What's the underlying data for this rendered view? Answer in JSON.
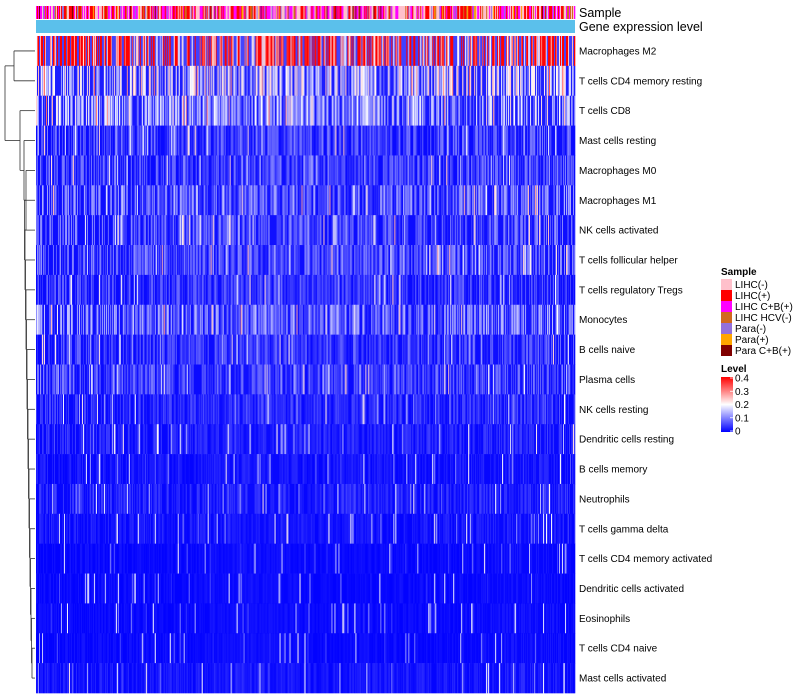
{
  "chart_data": {
    "type": "heatmap",
    "title": "",
    "annotation_tracks": [
      {
        "name": "Sample",
        "type": "categorical"
      },
      {
        "name": "Gene expression level",
        "type": "continuous",
        "color": "#5bc0eb"
      }
    ],
    "rows": [
      {
        "label": "Macrophages M2",
        "level": 0.34
      },
      {
        "label": "T cells CD4 memory resting",
        "level": 0.15
      },
      {
        "label": "T cells CD8",
        "level": 0.12
      },
      {
        "label": "Mast cells resting",
        "level": 0.06
      },
      {
        "label": "Macrophages M0",
        "level": 0.06
      },
      {
        "label": "Macrophages M1",
        "level": 0.08
      },
      {
        "label": "NK cells activated",
        "level": 0.07
      },
      {
        "label": "T cells follicular helper",
        "level": 0.07
      },
      {
        "label": "T cells regulatory  Tregs",
        "level": 0.05
      },
      {
        "label": "Monocytes",
        "level": 0.09
      },
      {
        "label": "B cells naive",
        "level": 0.05
      },
      {
        "label": "Plasma cells",
        "level": 0.06
      },
      {
        "label": "NK cells resting",
        "level": 0.04
      },
      {
        "label": "Dendritic cells resting",
        "level": 0.03
      },
      {
        "label": "B cells memory",
        "level": 0.02
      },
      {
        "label": "Neutrophils",
        "level": 0.03
      },
      {
        "label": "T cells gamma delta",
        "level": 0.02
      },
      {
        "label": "T cells CD4 memory activated",
        "level": 0.01
      },
      {
        "label": "Dendritic cells activated",
        "level": 0.01
      },
      {
        "label": "Eosinophils",
        "level": 0.01
      },
      {
        "label": "T cells CD4 naive",
        "level": 0.01
      },
      {
        "label": "Mast cells activated",
        "level": 0.02
      }
    ],
    "n_samples": 540,
    "legend_sample": {
      "title": "Sample",
      "entries": [
        {
          "label": "LIHC(-)",
          "color": "#ffc0cb"
        },
        {
          "label": "LIHC(+)",
          "color": "#ff0000"
        },
        {
          "label": "LIHC C+B(+)",
          "color": "#ff00ff"
        },
        {
          "label": "LIHC HCV(-)",
          "color": "#d2691e"
        },
        {
          "label": "Para(-)",
          "color": "#9370db"
        },
        {
          "label": "Para(+)",
          "color": "#ffa500"
        },
        {
          "label": "Para C+B(+)",
          "color": "#800000"
        }
      ]
    },
    "legend_level": {
      "title": "Level",
      "ticks": [
        "0.4",
        "0.3",
        "0.2",
        "0.1",
        "0"
      ],
      "range": [
        0,
        0.4
      ],
      "colors": {
        "low": "#0000ff",
        "mid": "#ffffff",
        "high": "#ff0000"
      }
    }
  }
}
